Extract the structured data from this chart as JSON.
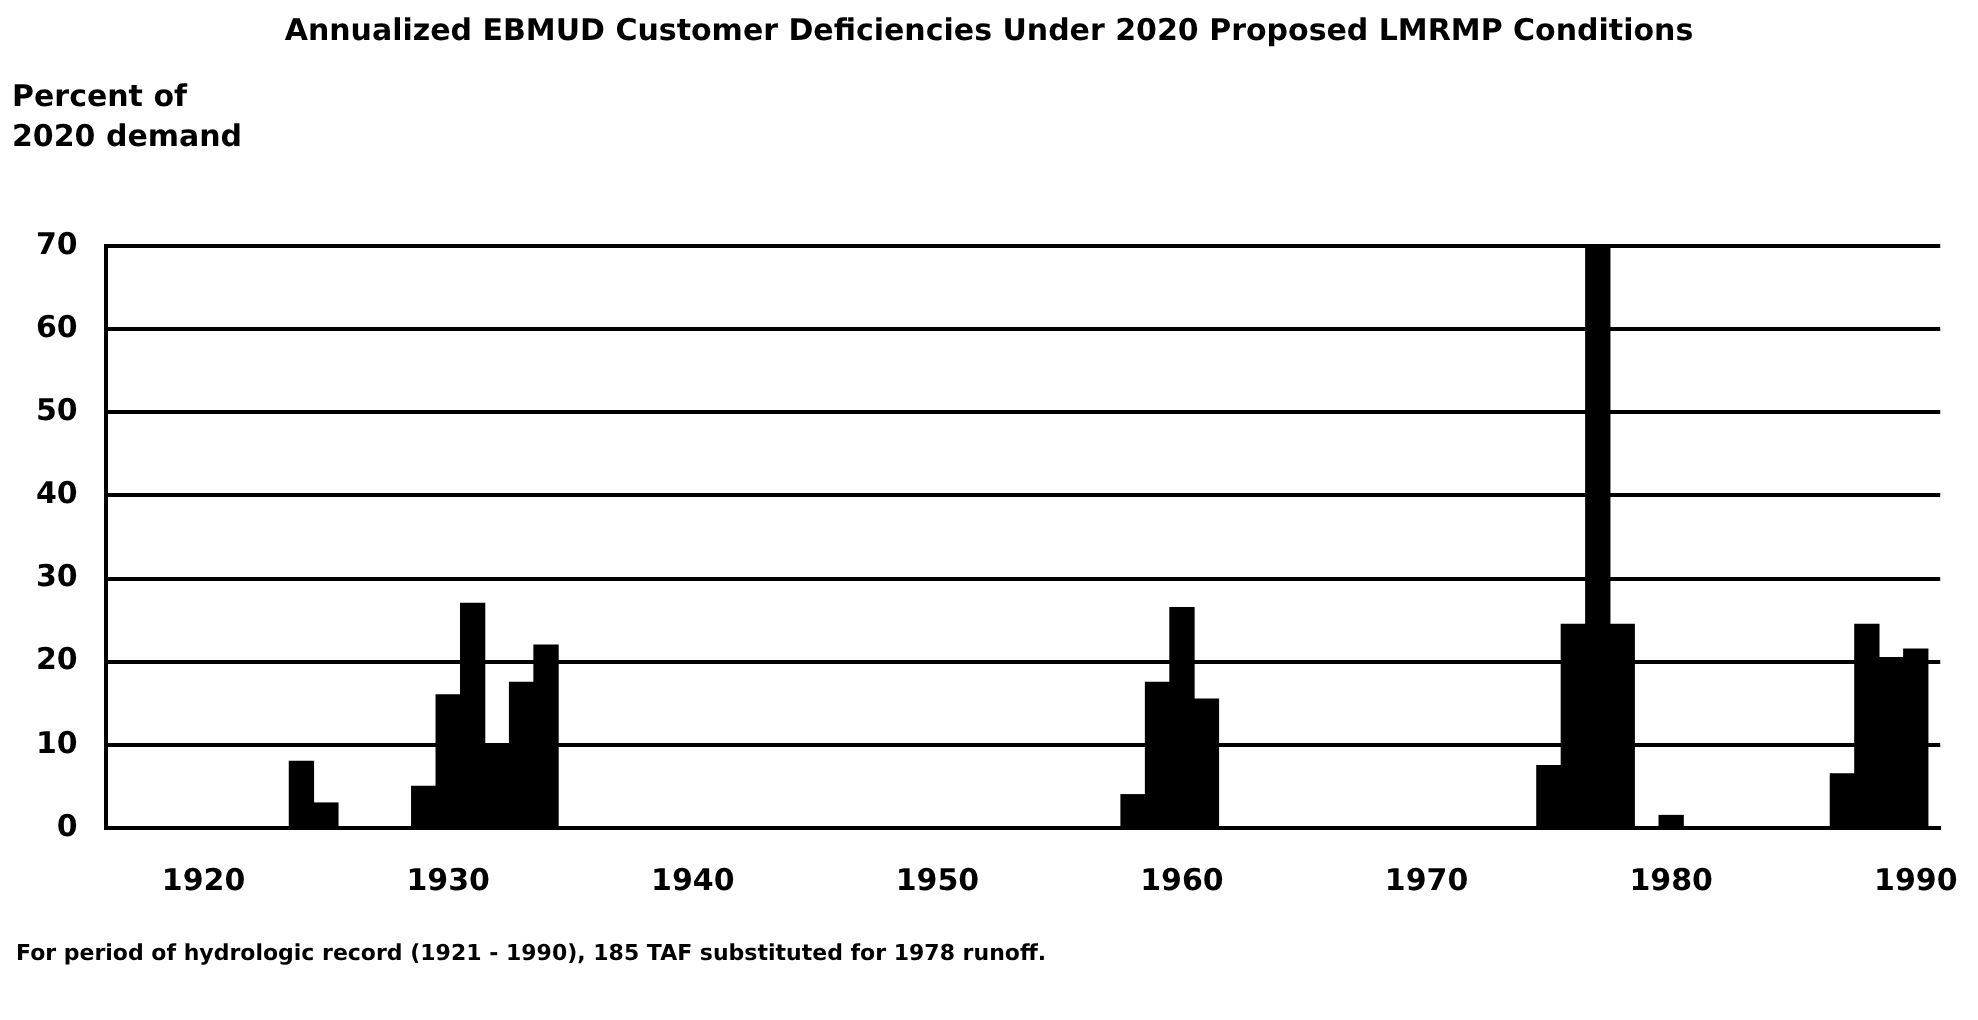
{
  "chart_data": {
    "type": "bar",
    "title": "Annualized EBMUD Customer Deficiencies Under  2020 Proposed LMRMP Conditions",
    "ylabel": "Percent of\n2020 demand",
    "x": [
      1921,
      1922,
      1923,
      1924,
      1925,
      1926,
      1927,
      1928,
      1929,
      1930,
      1931,
      1932,
      1933,
      1934,
      1935,
      1936,
      1937,
      1938,
      1939,
      1940,
      1941,
      1942,
      1943,
      1944,
      1945,
      1946,
      1947,
      1948,
      1949,
      1950,
      1951,
      1952,
      1953,
      1954,
      1955,
      1956,
      1957,
      1958,
      1959,
      1960,
      1961,
      1962,
      1963,
      1964,
      1965,
      1966,
      1967,
      1968,
      1969,
      1970,
      1971,
      1972,
      1973,
      1974,
      1975,
      1976,
      1977,
      1978,
      1979,
      1980,
      1981,
      1982,
      1983,
      1984,
      1985,
      1986,
      1987,
      1988,
      1989,
      1990
    ],
    "values": [
      0,
      0,
      0,
      8,
      3,
      0,
      0,
      0,
      5,
      16,
      27,
      10,
      17.5,
      22,
      0,
      0,
      0,
      0,
      0,
      0,
      0,
      0,
      0,
      0,
      0,
      0,
      0,
      0,
      0,
      0,
      0,
      0,
      0,
      0,
      0,
      0,
      0,
      4,
      17.5,
      26.5,
      15.5,
      0,
      0,
      0,
      0,
      0,
      0,
      0,
      0,
      0,
      0,
      0,
      0,
      0,
      7.5,
      24.5,
      70,
      24.5,
      0,
      1.5,
      0,
      0,
      0,
      0,
      0,
      0,
      6.5,
      24.5,
      20.5,
      21.5
    ],
    "color": "#000000",
    "xlim": [
      1916,
      1991
    ],
    "xticks": [
      1920,
      1930,
      1940,
      1950,
      1960,
      1970,
      1980,
      1990
    ],
    "ylim": [
      0,
      70
    ],
    "yticks": [
      0,
      10,
      20,
      30,
      40,
      50,
      60,
      70
    ],
    "grid": "y",
    "legend": false,
    "annotations": [
      "For period of hydrologic record (1921 - 1990), 185 TAF substituted for 1978 runoff."
    ]
  }
}
